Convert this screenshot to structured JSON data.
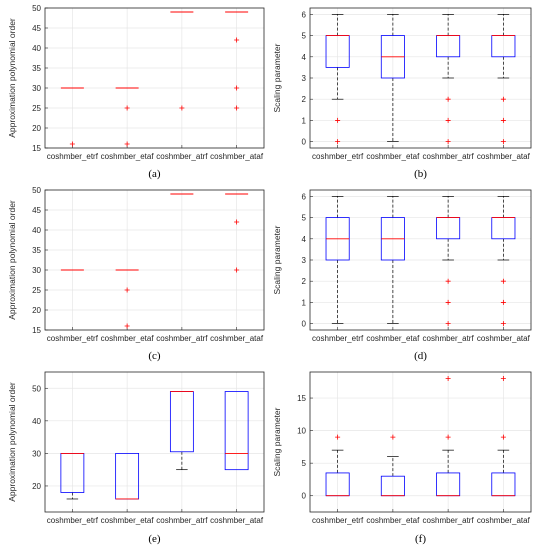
{
  "colors": {
    "box": "#0000ff",
    "median": "#ff0000",
    "outlier": "#ff0000",
    "whisker": "#000000",
    "grid": "#e6e6e6",
    "axis": "#262626"
  },
  "chart_data": [
    {
      "panel_label": "(a)",
      "type": "box",
      "ylabel": "Approximation polynomial order",
      "ylim": [
        15,
        50
      ],
      "yticks": [
        15,
        20,
        25,
        30,
        35,
        40,
        45,
        50
      ],
      "grid": true,
      "categories": [
        "coshmber_etrf",
        "coshmber_etaf",
        "coshmber_atrf",
        "coshmber_ataf"
      ],
      "boxes": [
        {
          "q1": 30,
          "median": 30,
          "q3": 30,
          "wlo": 30,
          "whi": 30,
          "outliers": [
            16
          ]
        },
        {
          "q1": 30,
          "median": 30,
          "q3": 30,
          "wlo": 30,
          "whi": 30,
          "outliers": [
            25,
            16
          ]
        },
        {
          "q1": 49,
          "median": 49,
          "q3": 49,
          "wlo": 49,
          "whi": 49,
          "outliers": [
            25
          ]
        },
        {
          "q1": 49,
          "median": 49,
          "q3": 49,
          "wlo": 49,
          "whi": 49,
          "outliers": [
            42,
            30,
            25
          ]
        }
      ]
    },
    {
      "panel_label": "(b)",
      "type": "box",
      "ylabel": "Scaling parameter",
      "ylim": [
        -0.3,
        6.3
      ],
      "yticks": [
        0,
        1,
        2,
        3,
        4,
        5,
        6
      ],
      "grid": true,
      "categories": [
        "coshmber_etrf",
        "coshmber_etaf",
        "coshmber_atrf",
        "coshmber_ataf"
      ],
      "boxes": [
        {
          "q1": 3.5,
          "median": 5,
          "q3": 5,
          "wlo": 2,
          "whi": 6,
          "outliers": [
            1,
            0
          ]
        },
        {
          "q1": 3,
          "median": 4,
          "q3": 5,
          "wlo": 0,
          "whi": 6,
          "outliers": []
        },
        {
          "q1": 4,
          "median": 5,
          "q3": 5,
          "wlo": 3,
          "whi": 6,
          "outliers": [
            2,
            1,
            0
          ]
        },
        {
          "q1": 4,
          "median": 5,
          "q3": 5,
          "wlo": 3,
          "whi": 6,
          "outliers": [
            2,
            1,
            0
          ]
        }
      ]
    },
    {
      "panel_label": "(c)",
      "type": "box",
      "ylabel": "Approximation polynomial order",
      "ylim": [
        15,
        50
      ],
      "yticks": [
        15,
        20,
        25,
        30,
        35,
        40,
        45,
        50
      ],
      "grid": true,
      "categories": [
        "coshmber_etrf",
        "coshmber_etaf",
        "coshmber_atrf",
        "coshmber_ataf"
      ],
      "boxes": [
        {
          "q1": 30,
          "median": 30,
          "q3": 30,
          "wlo": 30,
          "whi": 30,
          "outliers": []
        },
        {
          "q1": 30,
          "median": 30,
          "q3": 30,
          "wlo": 30,
          "whi": 30,
          "outliers": [
            25,
            16
          ]
        },
        {
          "q1": 49,
          "median": 49,
          "q3": 49,
          "wlo": 49,
          "whi": 49,
          "outliers": []
        },
        {
          "q1": 49,
          "median": 49,
          "q3": 49,
          "wlo": 49,
          "whi": 49,
          "outliers": [
            42,
            30
          ]
        }
      ]
    },
    {
      "panel_label": "(d)",
      "type": "box",
      "ylabel": "Scaling parameter",
      "ylim": [
        -0.3,
        6.3
      ],
      "yticks": [
        0,
        1,
        2,
        3,
        4,
        5,
        6
      ],
      "grid": true,
      "categories": [
        "coshmber_etrf",
        "coshmber_etaf",
        "coshmber_atrf",
        "coshmber_ataf"
      ],
      "boxes": [
        {
          "q1": 3,
          "median": 4,
          "q3": 5,
          "wlo": 0,
          "whi": 6,
          "outliers": []
        },
        {
          "q1": 3,
          "median": 4,
          "q3": 5,
          "wlo": 0,
          "whi": 6,
          "outliers": []
        },
        {
          "q1": 4,
          "median": 5,
          "q3": 5,
          "wlo": 3,
          "whi": 6,
          "outliers": [
            2,
            1,
            0
          ]
        },
        {
          "q1": 4,
          "median": 5,
          "q3": 5,
          "wlo": 3,
          "whi": 6,
          "outliers": [
            2,
            1,
            0
          ]
        }
      ]
    },
    {
      "panel_label": "(e)",
      "type": "box",
      "ylabel": "Approximation polynomial order",
      "ylim": [
        12,
        55
      ],
      "yticks": [
        20,
        30,
        40,
        50
      ],
      "grid": true,
      "categories": [
        "coshmber_etrf",
        "coshmber_etaf",
        "coshmber_atrf",
        "coshmber_ataf"
      ],
      "boxes": [
        {
          "q1": 18,
          "median": 30,
          "q3": 30,
          "wlo": 16,
          "whi": 30,
          "outliers": []
        },
        {
          "q1": 16,
          "median": 16,
          "q3": 30,
          "wlo": 16,
          "whi": 30,
          "outliers": []
        },
        {
          "q1": 30.5,
          "median": 49,
          "q3": 49,
          "wlo": 25,
          "whi": 49,
          "outliers": []
        },
        {
          "q1": 25,
          "median": 30,
          "q3": 49,
          "wlo": 25,
          "whi": 49,
          "outliers": []
        }
      ]
    },
    {
      "panel_label": "(f)",
      "type": "box",
      "ylabel": "Scaling parameter",
      "ylim": [
        -2.5,
        19
      ],
      "yticks": [
        0,
        5,
        10,
        15
      ],
      "grid": true,
      "categories": [
        "coshmber_etrf",
        "coshmber_etaf",
        "coshmber_atrf",
        "coshmber_ataf"
      ],
      "boxes": [
        {
          "q1": 0,
          "median": 0,
          "q3": 3.5,
          "wlo": 0,
          "whi": 7,
          "outliers": [
            9
          ]
        },
        {
          "q1": 0,
          "median": 0,
          "q3": 3,
          "wlo": 0,
          "whi": 6,
          "outliers": [
            9
          ]
        },
        {
          "q1": 0,
          "median": 0,
          "q3": 3.5,
          "wlo": 0,
          "whi": 7,
          "outliers": [
            9,
            18
          ]
        },
        {
          "q1": 0,
          "median": 0,
          "q3": 3.5,
          "wlo": 0,
          "whi": 7,
          "outliers": [
            9,
            18
          ]
        }
      ]
    }
  ]
}
